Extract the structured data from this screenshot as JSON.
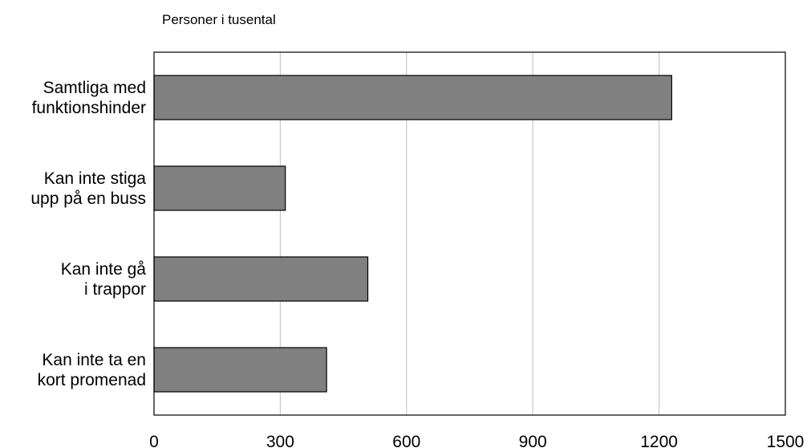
{
  "chart_data": {
    "type": "bar",
    "orientation": "horizontal",
    "title": "",
    "ylabel": "Personer i tusental",
    "categories": [
      [
        "Samtliga med",
        "funktionshinder"
      ],
      [
        "Kan inte stiga",
        "upp på en buss"
      ],
      [
        "Kan inte gå",
        "i trappor"
      ],
      [
        "Kan inte ta en",
        "kort promenad"
      ]
    ],
    "values": [
      1230,
      312,
      508,
      410
    ],
    "xlim": [
      0,
      1500
    ],
    "xticks": [
      0,
      300,
      600,
      900,
      1200,
      1500
    ],
    "grid": true,
    "bar_color": "#808080",
    "bar_edge_color": "#000000",
    "grid_color": "#c8c8c8"
  }
}
